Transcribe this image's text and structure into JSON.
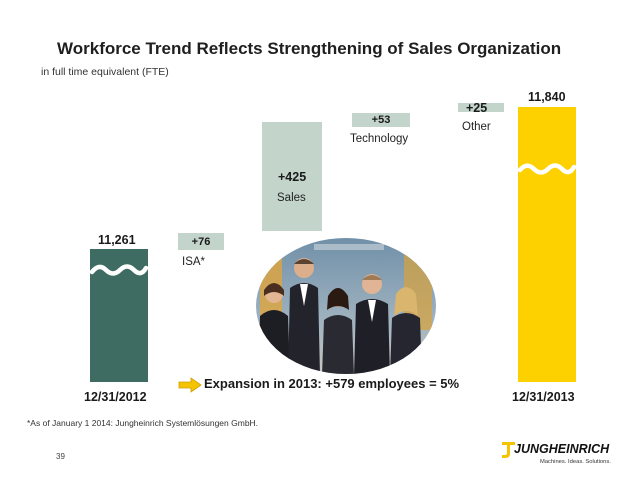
{
  "slide": {
    "title": "Workforce Trend Reflects Strengthening of Sales Organization",
    "subtitle": "in full time equivalent (FTE)",
    "expansion_text": "Expansion in 2013: +579 employees = 5%",
    "footnote": "*As of January 1 2014: Jungheinrich Systemlösungen GmbH.",
    "page_number": "39"
  },
  "logo": {
    "brand": "JUNGHEINRICH",
    "tagline": "Machines. Ideas. Solutions."
  },
  "chart_data": {
    "type": "waterfall",
    "title": "Workforce Trend Reflects Strengthening of Sales Organization",
    "unit": "in full time equivalent (FTE)",
    "axis_break": true,
    "start": {
      "label": "12/31/2012",
      "value": 11261,
      "value_label": "11,261"
    },
    "steps": [
      {
        "name": "ISA*",
        "value": 76,
        "value_label": "+76"
      },
      {
        "name": "Sales",
        "value": 425,
        "value_label": "+425"
      },
      {
        "name": "Technology",
        "value": 53,
        "value_label": "+53"
      },
      {
        "name": "Other",
        "value": 25,
        "value_label": "+25"
      }
    ],
    "end": {
      "label": "12/31/2013",
      "value": 11840,
      "value_label": "11,840"
    },
    "colors": {
      "start_bar": "#3f6c62",
      "step_bar": "#c3d4cb",
      "end_bar": "#fdd100",
      "expansion_arrow": "#f4c400",
      "break_wave": "#ffffff"
    }
  }
}
